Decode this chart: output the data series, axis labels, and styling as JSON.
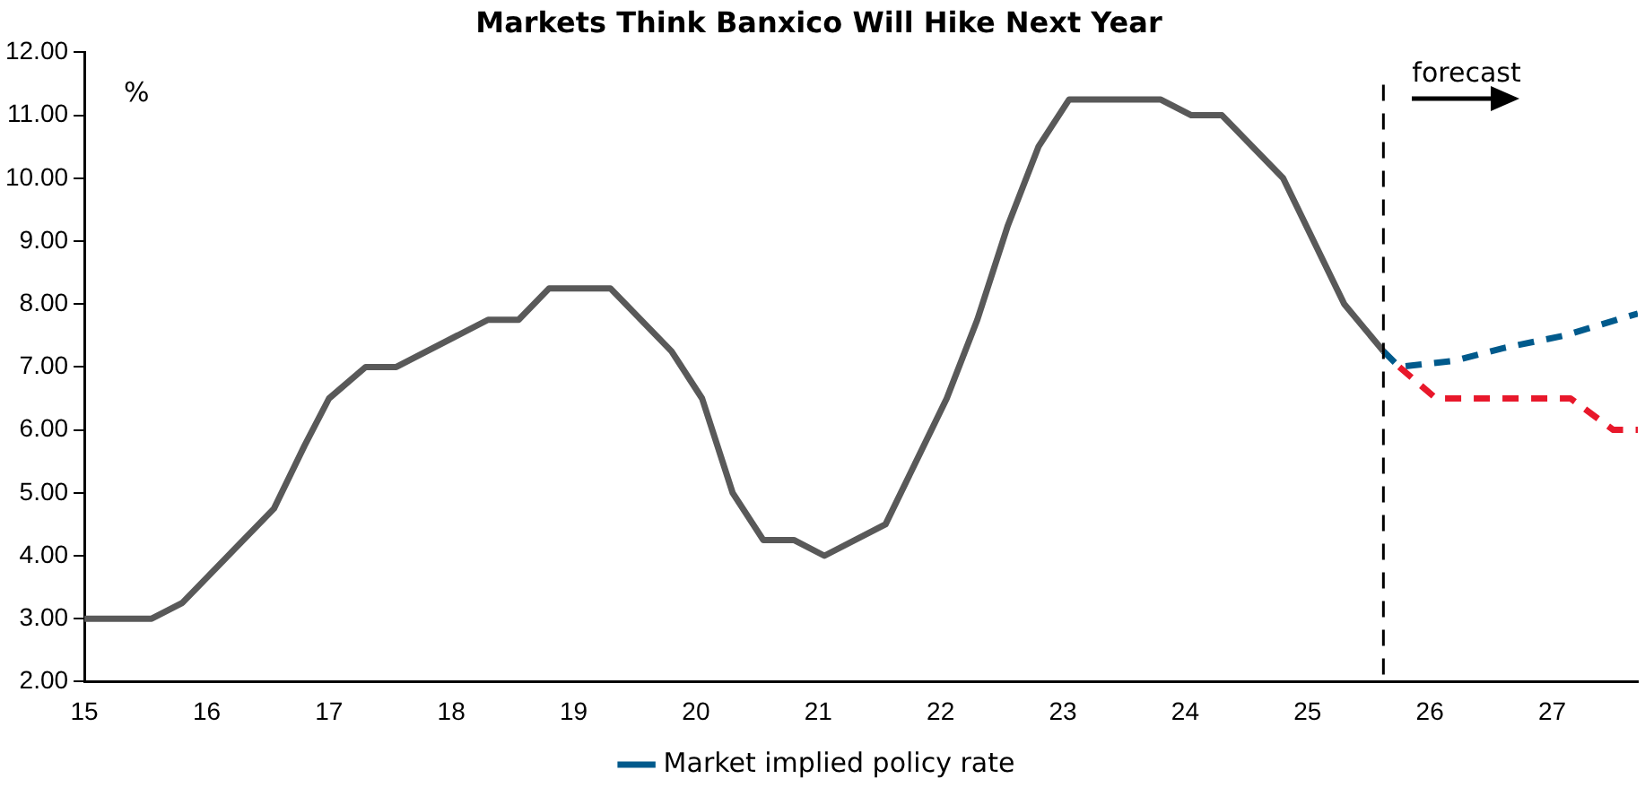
{
  "chart_data": {
    "type": "line",
    "title": "Markets Think Banxico Will Hike Next Year",
    "ylabel": "%",
    "xlim": [
      15,
      27.7
    ],
    "xticks": [
      15,
      16,
      17,
      18,
      19,
      20,
      21,
      22,
      23,
      24,
      25,
      26,
      27
    ],
    "ylim": [
      2,
      12
    ],
    "yticks": [
      {
        "value": 2,
        "label": "2.00"
      },
      {
        "value": 3,
        "label": "3.00"
      },
      {
        "value": 4,
        "label": "4.00"
      },
      {
        "value": 5,
        "label": "5.00"
      },
      {
        "value": 6,
        "label": "6.00"
      },
      {
        "value": 7,
        "label": "7.00"
      },
      {
        "value": 8,
        "label": "8.00"
      },
      {
        "value": 9,
        "label": "9.00"
      },
      {
        "value": 10,
        "label": "10.00"
      },
      {
        "value": 11,
        "label": "11.00"
      },
      {
        "value": 12,
        "label": "12.00"
      }
    ],
    "grid": false,
    "legend": "bottom",
    "marker": "none",
    "series": [
      {
        "color": "#595959",
        "line_style": "solid",
        "x": [
          15,
          15.55,
          15.8,
          16.55,
          16.8,
          17,
          17.3,
          17.55,
          18.3,
          18.55,
          18.8,
          19.3,
          19.8,
          20.05,
          20.3,
          20.55,
          20.8,
          21.05,
          21.55,
          22.05,
          22.3,
          22.55,
          22.8,
          23.05,
          23.8,
          24.05,
          24.3,
          24.8,
          25.3,
          25.62
        ],
        "values": [
          3,
          3,
          3.25,
          4.75,
          5.75,
          6.5,
          7,
          7,
          7.75,
          7.75,
          8.25,
          8.25,
          7.25,
          6.5,
          5,
          4.25,
          4.25,
          4,
          4.5,
          6.5,
          7.75,
          9.25,
          10.5,
          11.25,
          11.25,
          11,
          11,
          10,
          8,
          7.25
        ]
      },
      {
        "color": "#e8182b",
        "line_style": "dashed",
        "x": [
          25.75,
          26.05,
          27.15,
          27.5,
          27.7
        ],
        "values": [
          7,
          6.5,
          6.5,
          6,
          6
        ]
      },
      {
        "name": "Market implied policy rate",
        "color": "#005a8c",
        "line_style": "dashed",
        "x": [
          25.62,
          25.75,
          26.2,
          26.6,
          27.1,
          27.7
        ],
        "values": [
          7.25,
          7,
          7.1,
          7.3,
          7.5,
          7.85
        ]
      }
    ],
    "ref_lines": [
      {
        "axis": "x",
        "value": 25.62,
        "label": "forecast",
        "color": "#000000",
        "line_style": "dashed"
      }
    ]
  }
}
